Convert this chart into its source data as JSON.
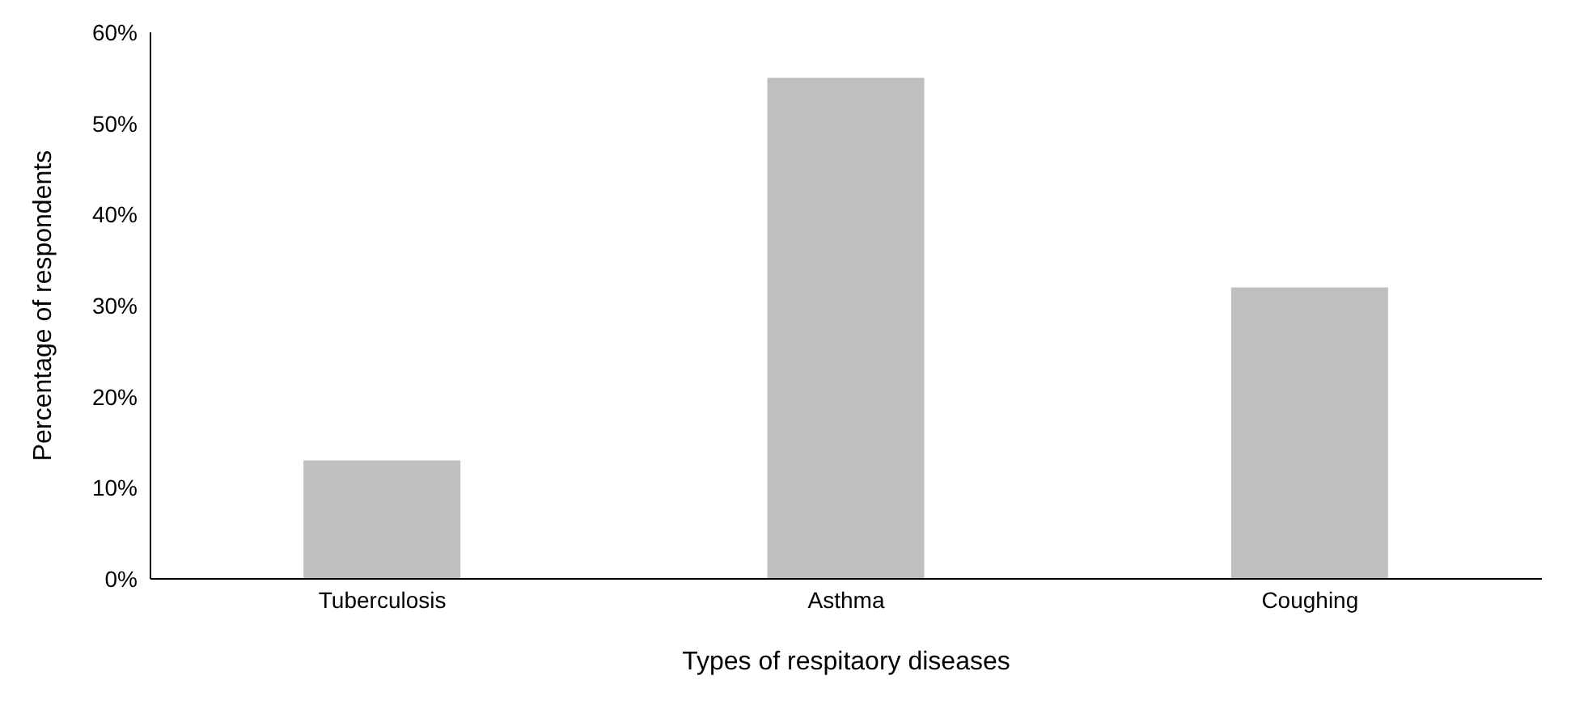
{
  "chart_data": {
    "type": "bar",
    "xlabel": "Types of respitaory diseases",
    "ylabel": "Percentage of respondents",
    "categories": [
      "Tuberculosis",
      "Asthma",
      "Coughing"
    ],
    "values": [
      13,
      55,
      32
    ],
    "color": "#bfbfbf",
    "ylim": [
      0,
      60
    ],
    "yticks": [
      {
        "value": 0,
        "label": "0%"
      },
      {
        "value": 10,
        "label": "10%"
      },
      {
        "value": 20,
        "label": "20%"
      },
      {
        "value": 30,
        "label": "30%"
      },
      {
        "value": 40,
        "label": "40%"
      },
      {
        "value": 50,
        "label": "50%"
      },
      {
        "value": 60,
        "label": "60%"
      }
    ],
    "grid": false
  }
}
